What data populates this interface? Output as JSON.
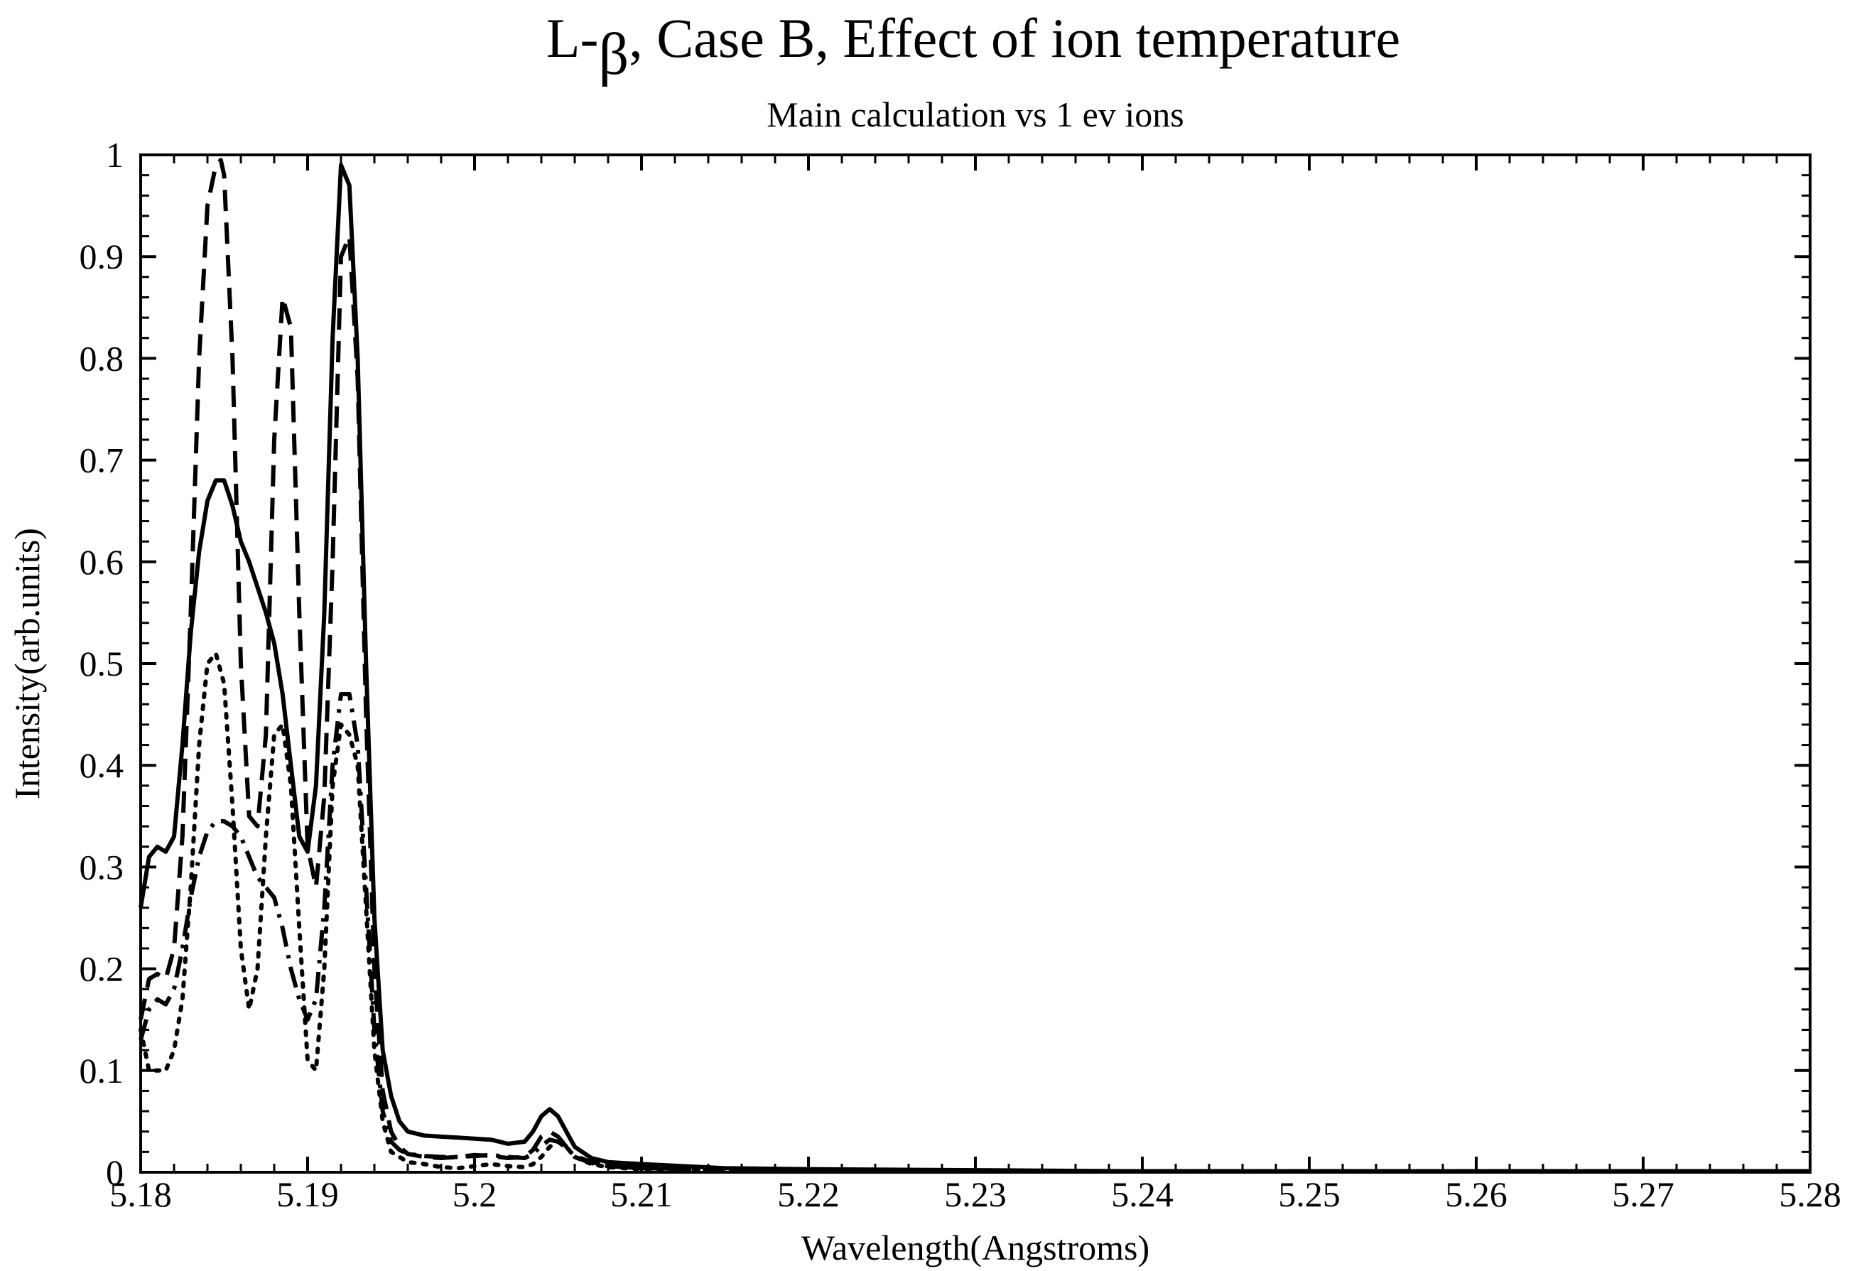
{
  "colors": {
    "line": "#000000",
    "background": "#ffffff"
  },
  "chart_data": {
    "type": "line",
    "title_prefix": "L-",
    "title_symbol": "β",
    "title_suffix": ", Case B, Effect of ion temperature",
    "subtitle": "Main calculation vs 1 ev ions",
    "xlabel": "Wavelength(Angstroms)",
    "ylabel": "Intensity(arb.units)",
    "xlim": [
      5.18,
      5.28
    ],
    "ylim": [
      0,
      1
    ],
    "grid": false,
    "legend": "none",
    "x_ticks": [
      5.18,
      5.19,
      5.2,
      5.21,
      5.22,
      5.23,
      5.24,
      5.25,
      5.26,
      5.27,
      5.28
    ],
    "x_tick_labels": [
      "5.18",
      "5.19",
      "5.2",
      "5.21",
      "5.22",
      "5.23",
      "5.24",
      "5.25",
      "5.26",
      "5.27",
      "5.28"
    ],
    "y_ticks": [
      0,
      0.1,
      0.2,
      0.3,
      0.4,
      0.5,
      0.6,
      0.7,
      0.8,
      0.9,
      1
    ],
    "y_tick_labels": [
      "0",
      "0.1",
      "0.2",
      "0.3",
      "0.4",
      "0.5",
      "0.6",
      "0.7",
      "0.8",
      "0.9",
      "1"
    ],
    "series": [
      {
        "style": "solid",
        "x": [
          5.18,
          5.1805,
          5.181,
          5.1815,
          5.182,
          5.1825,
          5.183,
          5.1835,
          5.184,
          5.1845,
          5.185,
          5.1855,
          5.186,
          5.1865,
          5.187,
          5.1875,
          5.188,
          5.1885,
          5.189,
          5.1895,
          5.19,
          5.1905,
          5.191,
          5.1915,
          5.192,
          5.1925,
          5.193,
          5.1935,
          5.194,
          5.1945,
          5.195,
          5.1955,
          5.196,
          5.197,
          5.198,
          5.199,
          5.2,
          5.201,
          5.202,
          5.203,
          5.2035,
          5.204,
          5.2045,
          5.205,
          5.2055,
          5.206,
          5.207,
          5.208,
          5.21,
          5.215,
          5.22,
          5.23,
          5.24,
          5.25,
          5.26,
          5.27,
          5.28
        ],
        "y": [
          0.26,
          0.31,
          0.32,
          0.315,
          0.33,
          0.42,
          0.53,
          0.61,
          0.66,
          0.68,
          0.68,
          0.655,
          0.62,
          0.6,
          0.575,
          0.55,
          0.52,
          0.47,
          0.4,
          0.33,
          0.315,
          0.38,
          0.55,
          0.82,
          0.99,
          0.97,
          0.8,
          0.5,
          0.25,
          0.12,
          0.075,
          0.05,
          0.04,
          0.036,
          0.035,
          0.034,
          0.033,
          0.032,
          0.028,
          0.03,
          0.04,
          0.055,
          0.062,
          0.055,
          0.04,
          0.025,
          0.014,
          0.01,
          0.008,
          0.004,
          0.003,
          0.002,
          0.001,
          0.001,
          0.001,
          0.001,
          0.001
        ]
      },
      {
        "style": "dashed",
        "x": [
          5.18,
          5.1805,
          5.181,
          5.1815,
          5.182,
          5.1825,
          5.183,
          5.1835,
          5.184,
          5.1845,
          5.1848,
          5.185,
          5.1855,
          5.186,
          5.1865,
          5.187,
          5.1875,
          5.188,
          5.1885,
          5.189,
          5.1895,
          5.19,
          5.1905,
          5.191,
          5.1915,
          5.192,
          5.1925,
          5.193,
          5.1935,
          5.194,
          5.1945,
          5.195,
          5.1955,
          5.196,
          5.197,
          5.198,
          5.199,
          5.2,
          5.201,
          5.202,
          5.203,
          5.2035,
          5.204,
          5.2045,
          5.205,
          5.2055,
          5.206,
          5.207,
          5.208,
          5.21,
          5.215,
          5.22,
          5.23,
          5.24,
          5.25,
          5.26,
          5.27,
          5.28
        ],
        "y": [
          0.15,
          0.19,
          0.195,
          0.19,
          0.22,
          0.33,
          0.55,
          0.8,
          0.95,
          0.99,
          0.995,
          0.98,
          0.8,
          0.5,
          0.35,
          0.34,
          0.43,
          0.72,
          0.86,
          0.83,
          0.55,
          0.32,
          0.28,
          0.37,
          0.6,
          0.9,
          0.92,
          0.78,
          0.45,
          0.2,
          0.08,
          0.04,
          0.025,
          0.018,
          0.015,
          0.014,
          0.015,
          0.017,
          0.016,
          0.014,
          0.015,
          0.022,
          0.035,
          0.04,
          0.035,
          0.025,
          0.015,
          0.009,
          0.006,
          0.004,
          0.003,
          0.002,
          0.001,
          0.001,
          0.001,
          0.001,
          0.001,
          0.001
        ]
      },
      {
        "style": "dotted",
        "x": [
          5.18,
          5.1805,
          5.181,
          5.1815,
          5.182,
          5.1825,
          5.183,
          5.1835,
          5.184,
          5.1845,
          5.185,
          5.1855,
          5.186,
          5.1865,
          5.187,
          5.1875,
          5.188,
          5.1885,
          5.189,
          5.1895,
          5.19,
          5.1905,
          5.191,
          5.1915,
          5.192,
          5.1925,
          5.193,
          5.1935,
          5.194,
          5.1945,
          5.195,
          5.1955,
          5.196,
          5.197,
          5.198,
          5.199,
          5.2,
          5.201,
          5.202,
          5.203,
          5.2035,
          5.204,
          5.2045,
          5.205,
          5.2055,
          5.206,
          5.207,
          5.208,
          5.21,
          5.215,
          5.22,
          5.23,
          5.24,
          5.25,
          5.26,
          5.27,
          5.28
        ],
        "y": [
          0.14,
          0.1,
          0.1,
          0.1,
          0.12,
          0.17,
          0.28,
          0.42,
          0.5,
          0.51,
          0.48,
          0.36,
          0.22,
          0.16,
          0.2,
          0.33,
          0.43,
          0.44,
          0.38,
          0.24,
          0.11,
          0.1,
          0.2,
          0.38,
          0.44,
          0.43,
          0.4,
          0.26,
          0.12,
          0.05,
          0.02,
          0.015,
          0.01,
          0.008,
          0.005,
          0.004,
          0.006,
          0.008,
          0.006,
          0.005,
          0.008,
          0.015,
          0.025,
          0.03,
          0.025,
          0.015,
          0.008,
          0.005,
          0.003,
          0.002,
          0.001,
          0.001,
          0.001,
          0.001,
          0.001,
          0.001,
          0.001
        ]
      },
      {
        "style": "dashdot",
        "x": [
          5.18,
          5.1805,
          5.181,
          5.1815,
          5.182,
          5.1825,
          5.183,
          5.1835,
          5.184,
          5.1845,
          5.185,
          5.1855,
          5.186,
          5.1865,
          5.187,
          5.1875,
          5.188,
          5.1885,
          5.189,
          5.1895,
          5.19,
          5.1905,
          5.191,
          5.1915,
          5.192,
          5.1925,
          5.193,
          5.1935,
          5.194,
          5.1945,
          5.195,
          5.1955,
          5.196,
          5.197,
          5.198,
          5.199,
          5.2,
          5.201,
          5.202,
          5.203,
          5.2035,
          5.204,
          5.2045,
          5.205,
          5.2055,
          5.206,
          5.207,
          5.208,
          5.21,
          5.215,
          5.22,
          5.23,
          5.24,
          5.25,
          5.26,
          5.27,
          5.28
        ],
        "y": [
          0.13,
          0.16,
          0.17,
          0.165,
          0.18,
          0.22,
          0.27,
          0.31,
          0.335,
          0.345,
          0.345,
          0.34,
          0.33,
          0.31,
          0.29,
          0.28,
          0.27,
          0.24,
          0.2,
          0.17,
          0.15,
          0.17,
          0.26,
          0.4,
          0.47,
          0.47,
          0.42,
          0.28,
          0.14,
          0.06,
          0.03,
          0.022,
          0.018,
          0.016,
          0.015,
          0.015,
          0.016,
          0.017,
          0.015,
          0.014,
          0.018,
          0.026,
          0.032,
          0.03,
          0.024,
          0.016,
          0.01,
          0.006,
          0.004,
          0.003,
          0.002,
          0.001,
          0.001,
          0.001,
          0.001,
          0.001,
          0.001
        ]
      }
    ]
  }
}
